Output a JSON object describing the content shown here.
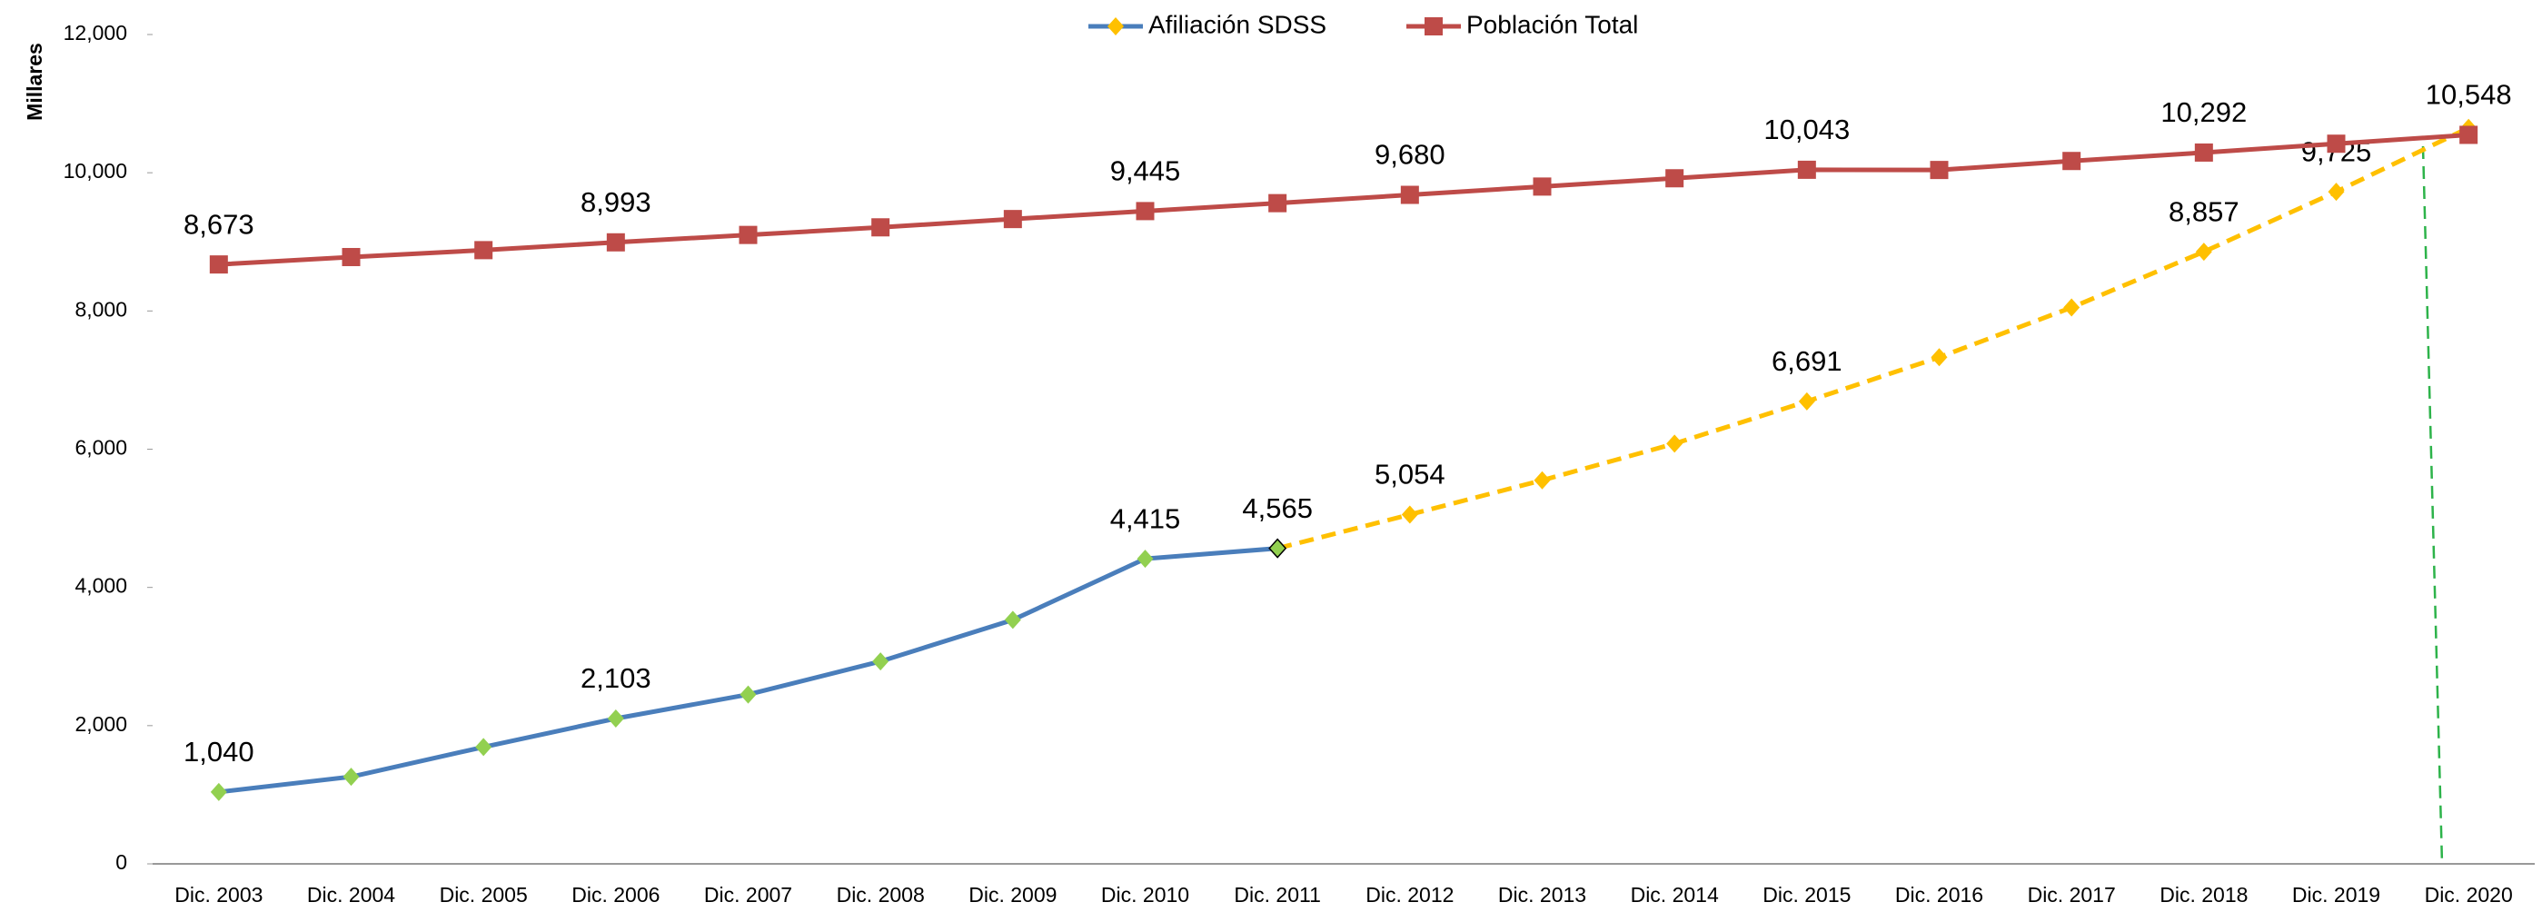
{
  "chart_data": {
    "type": "line",
    "y_axis_label": "Millares",
    "categories": [
      "Dic. 2003",
      "Dic. 2004",
      "Dic. 2005",
      "Dic. 2006",
      "Dic. 2007",
      "Dic. 2008",
      "Dic. 2009",
      "Dic. 2010",
      "Dic. 2011",
      "Dic. 2012",
      "Dic. 2013",
      "Dic. 2014",
      "Dic. 2015",
      "Dic. 2016",
      "Dic. 2017",
      "Dic. 2018",
      "Dic. 2019",
      "Dic. 2020"
    ],
    "series": [
      {
        "name": "Afiliación SDSS",
        "color": "#4a7ebb",
        "marker": "diamond",
        "marker_color": "#92d050",
        "projected_color": "#ffc000",
        "dash_start": "Dic. 2011",
        "values": [
          1040,
          1260,
          1690,
          2103,
          2450,
          2930,
          3530,
          4415,
          4565,
          5054,
          5550,
          6080,
          6691,
          7330,
          8050,
          8857,
          9725,
          10650
        ],
        "value_labels": [
          "1,040",
          null,
          null,
          "2,103",
          null,
          null,
          null,
          "4,415",
          "4,565",
          "5,054",
          null,
          null,
          "6,691",
          null,
          null,
          "8,857",
          "9,725",
          null
        ]
      },
      {
        "name": "Población Total",
        "color": "#be4b48",
        "marker": "square",
        "marker_color": "#be4b48",
        "values": [
          8673,
          8780,
          8880,
          8993,
          9100,
          9210,
          9330,
          9445,
          9560,
          9680,
          9800,
          9920,
          10043,
          10040,
          10170,
          10292,
          10420,
          10548
        ],
        "value_labels": [
          "8,673",
          null,
          null,
          "8,993",
          null,
          null,
          null,
          "9,445",
          null,
          "9,680",
          null,
          null,
          "10,043",
          null,
          null,
          "10,292",
          null,
          "10,548"
        ]
      }
    ],
    "ylim": [
      0,
      12000
    ],
    "yticks": [
      0,
      {
        "value": 2000,
        "label": "2,000"
      },
      {
        "value": 4000,
        "label": "4,000"
      },
      {
        "value": 6000,
        "label": "6,000"
      },
      {
        "value": 8000,
        "label": "8,000"
      },
      {
        "value": 10000,
        "label": "10,000"
      },
      {
        "value": 12000,
        "label": "12,000"
      }
    ],
    "grid": false,
    "legend": "top"
  }
}
